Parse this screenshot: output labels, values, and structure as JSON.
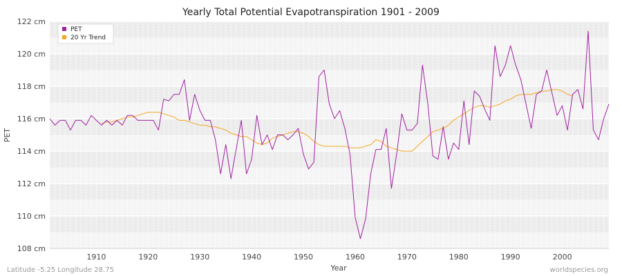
{
  "colors": {
    "pet": "#a020a0",
    "trend": "#f5a623",
    "band": "#ececec",
    "plot_bg": "#f5f5f5"
  },
  "chart_data": {
    "type": "line",
    "title": "Yearly Total Potential Evapotranspiration 1901 - 2009",
    "xlabel": "Year",
    "ylabel": "PET",
    "xlim": [
      1901,
      2009
    ],
    "ylim": [
      108,
      122
    ],
    "x_ticks": [
      1910,
      1920,
      1930,
      1940,
      1950,
      1960,
      1970,
      1980,
      1990,
      2000
    ],
    "y_ticks": [
      {
        "value": 108,
        "label": "108 cm"
      },
      {
        "value": 110,
        "label": "110 cm"
      },
      {
        "value": 112,
        "label": "112 cm"
      },
      {
        "value": 114,
        "label": "114 cm"
      },
      {
        "value": 116,
        "label": "116 cm"
      },
      {
        "value": 118,
        "label": "118 cm"
      },
      {
        "value": 120,
        "label": "120 cm"
      },
      {
        "value": 122,
        "label": "122 cm"
      }
    ],
    "legend_position": "top-left",
    "grid": true,
    "series": [
      {
        "name": "PET",
        "color": "#a020a0",
        "start_year": 1901,
        "values": [
          116.0,
          115.6,
          115.9,
          115.9,
          115.3,
          115.9,
          115.9,
          115.6,
          116.2,
          115.9,
          115.6,
          115.9,
          115.6,
          115.9,
          115.6,
          116.2,
          116.2,
          115.9,
          115.9,
          115.9,
          115.9,
          115.3,
          117.2,
          117.1,
          117.5,
          117.5,
          118.4,
          115.9,
          117.5,
          116.5,
          115.9,
          115.9,
          114.7,
          112.6,
          114.4,
          112.3,
          114.1,
          115.9,
          112.6,
          113.5,
          116.2,
          114.4,
          115.0,
          114.1,
          115.0,
          115.0,
          114.7,
          115.0,
          115.4,
          113.8,
          112.9,
          113.3,
          118.6,
          119.0,
          116.9,
          116.0,
          116.5,
          115.4,
          113.8,
          109.9,
          108.6,
          109.8,
          112.6,
          114.1,
          114.1,
          115.4,
          111.7,
          113.8,
          116.3,
          115.3,
          115.3,
          115.7,
          119.3,
          117.0,
          113.7,
          113.5,
          115.5,
          113.5,
          114.5,
          114.1,
          117.1,
          114.4,
          117.7,
          117.4,
          116.6,
          115.9,
          120.5,
          118.6,
          119.3,
          120.5,
          119.3,
          118.4,
          116.9,
          115.4,
          117.5,
          117.7,
          119.0,
          117.6,
          116.2,
          116.8,
          115.3,
          117.5,
          117.8,
          116.6,
          121.4,
          115.3,
          114.7,
          116.0,
          116.9
        ]
      },
      {
        "name": "20 Yr Trend",
        "color": "#f5a623",
        "start_year": 1911,
        "values": [
          115.7,
          115.8,
          115.8,
          115.9,
          116.0,
          116.1,
          116.1,
          116.2,
          116.3,
          116.4,
          116.4,
          116.4,
          116.3,
          116.2,
          116.1,
          115.9,
          115.9,
          115.8,
          115.7,
          115.6,
          115.6,
          115.5,
          115.5,
          115.4,
          115.3,
          115.1,
          115.0,
          114.9,
          114.9,
          114.7,
          114.5,
          114.4,
          114.5,
          114.8,
          114.9,
          115.0,
          115.1,
          115.2,
          115.2,
          115.1,
          114.9,
          114.6,
          114.4,
          114.3,
          114.3,
          114.3,
          114.3,
          114.3,
          114.2,
          114.2,
          114.2,
          114.3,
          114.4,
          114.7,
          114.6,
          114.3,
          114.2,
          114.1,
          114.0,
          114.0,
          114.0,
          114.3,
          114.6,
          114.9,
          115.2,
          115.3,
          115.4,
          115.6,
          115.9,
          116.1,
          116.3,
          116.5,
          116.7,
          116.8,
          116.8,
          116.7,
          116.8,
          116.9,
          117.1,
          117.2,
          117.4,
          117.5,
          117.5,
          117.5,
          117.6,
          117.7,
          117.7,
          117.8,
          117.8,
          117.7,
          117.5,
          117.4
        ]
      }
    ]
  },
  "footer": {
    "left": "Latitude -5.25 Longitude 28.75",
    "right": "worldspecies.org"
  }
}
